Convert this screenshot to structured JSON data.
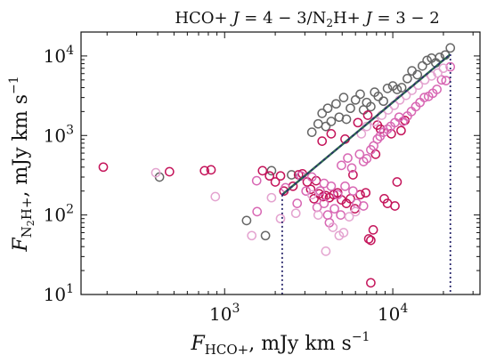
{
  "chart_data": {
    "type": "scatter",
    "title": "HCO+ J = 4 − 3/N2H+ J = 3 − 2",
    "title_parts": {
      "a": "HCO+ ",
      "b": "J",
      "c": " = 4 − 3/N",
      "d": "2",
      "e": "H+ ",
      "f": "J",
      "g": " = 3 − 2"
    },
    "xlabel_parts": {
      "f": "F",
      "sub": "HCO+",
      "units": ", mJy km s",
      "exp": "−1"
    },
    "ylabel_parts": {
      "f": "F",
      "sub": "N",
      "sub2": "2",
      "sub3": "H+",
      "units": ", mJy km s",
      "exp": "−1"
    },
    "xscale": "log",
    "yscale": "log",
    "xlim": [
      140,
      33000
    ],
    "ylim": [
      10,
      20000
    ],
    "x_ticks": [
      {
        "value": 1000,
        "base": "10",
        "exp": "3"
      },
      {
        "value": 10000,
        "base": "10",
        "exp": "4"
      }
    ],
    "y_ticks": [
      {
        "value": 10,
        "base": "10",
        "exp": "1"
      },
      {
        "value": 100,
        "base": "10",
        "exp": "2"
      },
      {
        "value": 1000,
        "base": "10",
        "exp": "3"
      },
      {
        "value": 10000,
        "base": "10",
        "exp": "4"
      }
    ],
    "grid": false,
    "legend": "none",
    "colors": {
      "gray": "#666666",
      "crimson": "#c4145a",
      "pink": "#d868b4",
      "light_pink": "#e4a4d0",
      "fit_green": "#2e6b4f",
      "fit_navy": "#2c2a6e"
    },
    "series": [
      {
        "color_key": "gray",
        "points": [
          [
            410,
            300
          ],
          [
            1350,
            85
          ],
          [
            1750,
            55
          ],
          [
            1900,
            360
          ],
          [
            2500,
            320
          ],
          [
            3300,
            1100
          ],
          [
            3600,
            1400
          ],
          [
            3800,
            1900
          ],
          [
            4000,
            1300
          ],
          [
            4100,
            2200
          ],
          [
            4300,
            1500
          ],
          [
            4600,
            2500
          ],
          [
            4800,
            1700
          ],
          [
            5100,
            3000
          ],
          [
            5300,
            1600
          ],
          [
            5600,
            2200
          ],
          [
            6000,
            2800
          ],
          [
            6400,
            3300
          ],
          [
            6700,
            2100
          ],
          [
            7000,
            2600
          ],
          [
            7400,
            2300
          ],
          [
            7800,
            3500
          ],
          [
            8200,
            3100
          ],
          [
            8800,
            2700
          ],
          [
            9300,
            3900
          ],
          [
            10000,
            4200
          ],
          [
            10600,
            3800
          ],
          [
            11300,
            4000
          ],
          [
            12200,
            5200
          ],
          [
            13000,
            6500
          ],
          [
            14000,
            5800
          ],
          [
            15000,
            7500
          ],
          [
            16000,
            8800
          ],
          [
            17000,
            9400
          ],
          [
            18000,
            8200
          ],
          [
            19000,
            9600
          ],
          [
            20500,
            10300
          ],
          [
            22000,
            12600
          ]
        ]
      },
      {
        "color_key": "crimson",
        "points": [
          [
            190,
            400
          ],
          [
            470,
            350
          ],
          [
            760,
            360
          ],
          [
            830,
            370
          ],
          [
            1680,
            360
          ],
          [
            1850,
            310
          ],
          [
            2000,
            260
          ],
          [
            2150,
            310
          ],
          [
            2250,
            200
          ],
          [
            2550,
            230
          ],
          [
            2750,
            320
          ],
          [
            2900,
            330
          ],
          [
            3100,
            260
          ],
          [
            3250,
            210
          ],
          [
            3400,
            160
          ],
          [
            3500,
            270
          ],
          [
            3650,
            185
          ],
          [
            3850,
            170
          ],
          [
            4000,
            175
          ],
          [
            4200,
            165
          ],
          [
            4450,
            180
          ],
          [
            4700,
            190
          ],
          [
            4950,
            155
          ],
          [
            5300,
            140
          ],
          [
            5600,
            160
          ],
          [
            5950,
            120
          ],
          [
            6400,
            180
          ],
          [
            6900,
            190
          ],
          [
            7200,
            50
          ],
          [
            7400,
            48
          ],
          [
            7650,
            65
          ],
          [
            7900,
            580
          ],
          [
            8100,
            1350
          ],
          [
            8450,
            1200
          ],
          [
            8900,
            160
          ],
          [
            9300,
            140
          ],
          [
            9800,
            1050
          ],
          [
            10300,
            130
          ],
          [
            10600,
            260
          ],
          [
            11200,
            1150
          ],
          [
            11800,
            1550
          ],
          [
            6200,
            1450
          ],
          [
            7100,
            1800
          ],
          [
            5200,
            900
          ],
          [
            4300,
            1050
          ],
          [
            3800,
            850
          ],
          [
            7400,
            14
          ],
          [
            5800,
            320
          ]
        ]
      },
      {
        "color_key": "pink",
        "points": [
          [
            1550,
            270
          ],
          [
            1560,
            110
          ],
          [
            2300,
            220
          ],
          [
            2700,
            140
          ],
          [
            2850,
            310
          ],
          [
            3050,
            200
          ],
          [
            3300,
            300
          ],
          [
            3550,
            125
          ],
          [
            3700,
            200
          ],
          [
            3900,
            140
          ],
          [
            4100,
            100
          ],
          [
            4300,
            230
          ],
          [
            4500,
            120
          ],
          [
            4700,
            180
          ],
          [
            4950,
            420
          ],
          [
            5200,
            230
          ],
          [
            5400,
            520
          ],
          [
            5700,
            390
          ],
          [
            6100,
            140
          ],
          [
            6350,
            580
          ],
          [
            6700,
            470
          ],
          [
            7000,
            510
          ],
          [
            7400,
            660
          ],
          [
            7700,
            740
          ],
          [
            8100,
            900
          ],
          [
            8400,
            980
          ],
          [
            8800,
            1100
          ],
          [
            9300,
            1200
          ],
          [
            9700,
            1300
          ],
          [
            10300,
            1450
          ],
          [
            10900,
            1700
          ],
          [
            11500,
            1500
          ],
          [
            12200,
            1750
          ],
          [
            12900,
            2000
          ],
          [
            13700,
            2300
          ],
          [
            14500,
            2600
          ],
          [
            15400,
            3000
          ],
          [
            16300,
            3100
          ],
          [
            17300,
            3400
          ],
          [
            18300,
            3800
          ],
          [
            19500,
            5000
          ],
          [
            20700,
            4900
          ],
          [
            22000,
            7300
          ],
          [
            6700,
            130
          ],
          [
            5800,
            200
          ],
          [
            4900,
            100
          ],
          [
            4200,
            80
          ],
          [
            3900,
            250
          ]
        ]
      },
      {
        "color_key": "light_pink",
        "points": [
          [
            390,
            340
          ],
          [
            880,
            170
          ],
          [
            1450,
            55
          ],
          [
            1900,
            165
          ],
          [
            4000,
            35
          ],
          [
            4400,
            70
          ],
          [
            5100,
            60
          ],
          [
            4800,
            55
          ],
          [
            5500,
            95
          ],
          [
            6000,
            110
          ],
          [
            6500,
            1050
          ],
          [
            7000,
            1300
          ],
          [
            7800,
            1500
          ],
          [
            8600,
            1800
          ],
          [
            9400,
            2100
          ],
          [
            10200,
            2400
          ],
          [
            11000,
            2800
          ],
          [
            12000,
            3200
          ],
          [
            13000,
            3700
          ],
          [
            14200,
            4300
          ],
          [
            15500,
            5000
          ],
          [
            17000,
            5600
          ],
          [
            18500,
            6100
          ],
          [
            20000,
            7000
          ],
          [
            3600,
            100
          ],
          [
            3300,
            180
          ],
          [
            2650,
            105
          ],
          [
            2150,
            90
          ]
        ]
      }
    ],
    "fit_line": {
      "x": [
        2200,
        22000
      ],
      "y": [
        180,
        10500
      ]
    },
    "range_markers": [
      {
        "x": 2200,
        "y_top": 180
      },
      {
        "x": 22000,
        "y_top": 10500
      }
    ]
  }
}
